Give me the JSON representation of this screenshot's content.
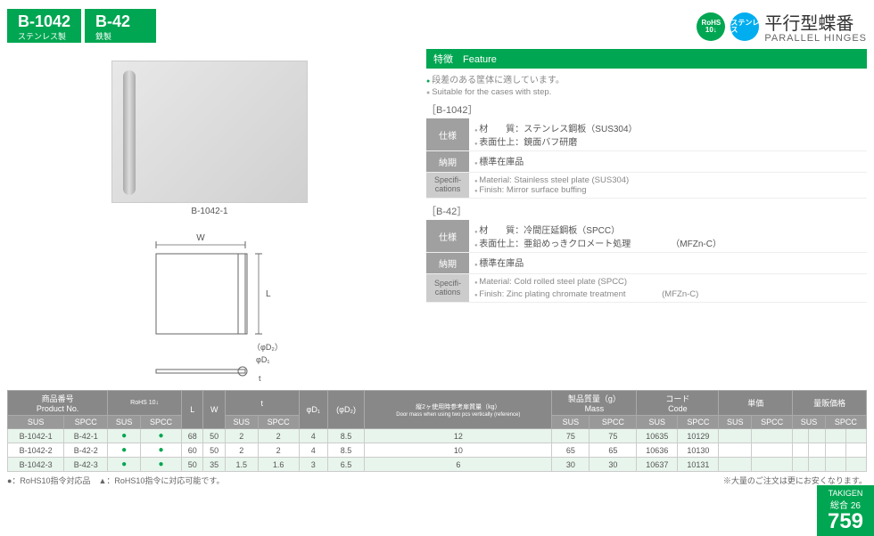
{
  "header": {
    "tabs": [
      {
        "code": "B-1042",
        "sub": "ステンレス製"
      },
      {
        "code": "B-42",
        "sub": "鉄製"
      }
    ]
  },
  "topRight": {
    "badges": [
      {
        "line1": "RoHS",
        "line2": "10↓",
        "type": "rohs"
      },
      {
        "line1": "ステンレス",
        "type": "sus"
      }
    ],
    "titleJp": "平行型蝶番",
    "titleEn": "PARALLEL HINGES"
  },
  "feature": {
    "bar": "特徴　Feature",
    "jp": "段差のある筐体に適しています。",
    "en": "Suitable for the cases with step."
  },
  "specs": [
    {
      "group": "［B-1042］",
      "jpRows": [
        {
          "label": "仕様",
          "lines": [
            "材　　質：ステンレス鋼板（SUS304）",
            "表面仕上：鏡面バフ研磨"
          ]
        },
        {
          "label": "納期",
          "lines": [
            "標準在庫品"
          ]
        }
      ],
      "enRows": [
        {
          "label": "Specifi-cations",
          "lines": [
            "Material: Stainless steel plate (SUS304)",
            "Finish: Mirror surface buffing"
          ]
        }
      ]
    },
    {
      "group": "［B-42］",
      "jpRows": [
        {
          "label": "仕様",
          "lines": [
            "材　　質：冷間圧延鋼板（SPCC）",
            "表面仕上：亜鉛めっきクロメート処理　　　　　（MFZn-C）"
          ]
        },
        {
          "label": "納期",
          "lines": [
            "標準在庫品"
          ]
        }
      ],
      "enRows": [
        {
          "label": "Specifi-cations",
          "lines": [
            "Material: Cold rolled steel plate (SPCC)",
            "Finish: Zinc plating chromate treatment 　　　　(MFZn-C)"
          ]
        }
      ]
    }
  ],
  "imageCaption": "B-1042-1",
  "diagram": {
    "W": "W",
    "L": "L",
    "D1": "φD₁",
    "D2": "（φD₂）",
    "t": "t"
  },
  "table": {
    "headers1": {
      "prodNo": {
        "jp": "商品番号",
        "en": "Product No."
      },
      "rohs": "RoHS 10↓",
      "L": "L",
      "W": "W",
      "t": "t",
      "D1": "φD₁",
      "D2": "(φD₂)",
      "doorMass": {
        "jp": "縦2ヶ使用時参考扉質量（kg）",
        "en": "Door mass when using two pcs vertically (reference)"
      },
      "mass": {
        "jp": "製品質量（g）",
        "en": "Mass"
      },
      "code": {
        "jp": "コード",
        "en": "Code"
      },
      "unitPrice": "単価",
      "volPrice": "量販価格"
    },
    "sub": {
      "sus": "SUS",
      "spcc": "SPCC",
      "qty": "数量",
      "unit": "単価"
    },
    "rows": [
      {
        "sus": "B-1042-1",
        "spcc": "B-42-1",
        "rs": "●",
        "rp": "●",
        "L": "68",
        "W": "50",
        "ts": "2",
        "tp": "2",
        "d1": "4",
        "d2": "8.5",
        "dm": "12",
        "ms": "75",
        "mp": "75",
        "cs": "10635",
        "cp": "10129"
      },
      {
        "sus": "B-1042-2",
        "spcc": "B-42-2",
        "rs": "●",
        "rp": "●",
        "L": "60",
        "W": "50",
        "ts": "2",
        "tp": "2",
        "d1": "4",
        "d2": "8.5",
        "dm": "10",
        "ms": "65",
        "mp": "65",
        "cs": "10636",
        "cp": "10130"
      },
      {
        "sus": "B-1042-3",
        "spcc": "B-42-3",
        "rs": "●",
        "rp": "●",
        "L": "50",
        "W": "35",
        "ts": "1.5",
        "tp": "1.6",
        "d1": "3",
        "d2": "6.5",
        "dm": "6",
        "ms": "30",
        "mp": "30",
        "cs": "10637",
        "cp": "10131"
      }
    ],
    "footLeft": "●：RoHS10指令対応品　▲：RoHS10指令に対応可能です。",
    "footRight": "※大量のご注文は更にお安くなります。"
  },
  "pageNum": {
    "brand": "TAKIGEN",
    "cat": "総合 26",
    "num": "759"
  }
}
